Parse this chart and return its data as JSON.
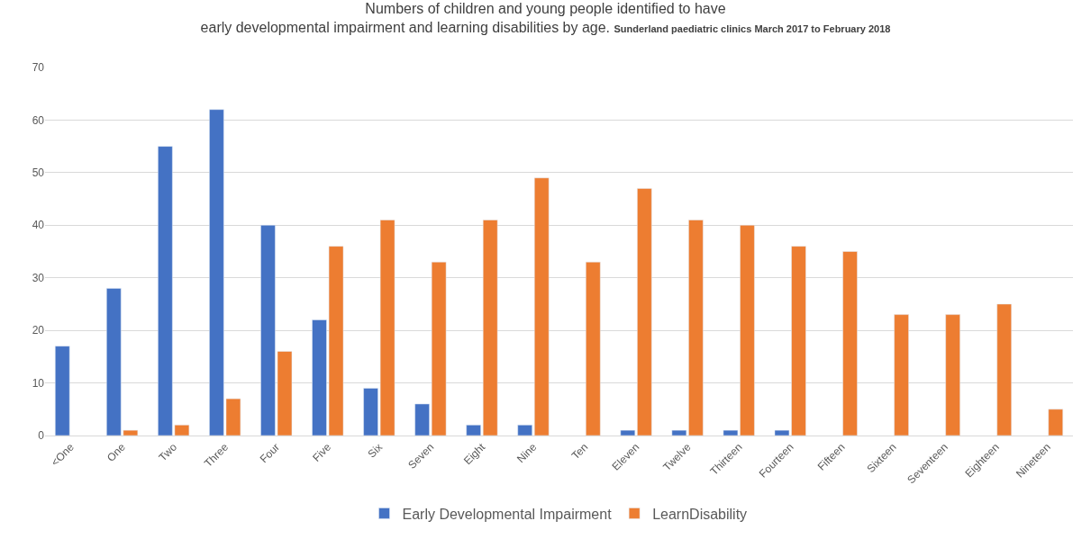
{
  "chart_data": {
    "type": "bar",
    "title": "Numbers of children and young people identified to have early developmental impairment and learning disabilities by age.",
    "subtitle": "Sunderland paediatric clinics March 2017 to February 2018",
    "categories": [
      "<One",
      "One",
      "Two",
      "Three",
      "Four",
      "Five",
      "Six",
      "Seven",
      "Eight",
      "Nine",
      "Ten",
      "Eleven",
      "Twelve",
      "Thirteen",
      "Fourteen",
      "Fifteen",
      "Sixteen",
      "Seventeen",
      "Eighteen",
      "Nineteen"
    ],
    "series": [
      {
        "name": "Early Developmental Impairment",
        "color": "#4472c4",
        "values": [
          17,
          28,
          55,
          62,
          40,
          22,
          9,
          6,
          2,
          2,
          null,
          1,
          1,
          1,
          1,
          null,
          null,
          null,
          null,
          null
        ]
      },
      {
        "name": "LearnDisability",
        "color": "#ed7d31",
        "values": [
          null,
          1,
          2,
          7,
          16,
          36,
          41,
          33,
          41,
          49,
          33,
          47,
          41,
          40,
          36,
          35,
          23,
          23,
          25,
          5
        ]
      }
    ],
    "ylim": [
      0,
      70
    ],
    "yticks": [
      0,
      10,
      20,
      30,
      40,
      50,
      60,
      70
    ],
    "grid": "y",
    "legend": "bottom"
  }
}
